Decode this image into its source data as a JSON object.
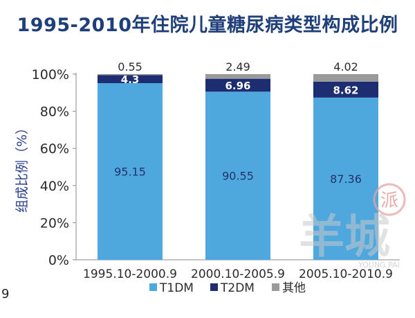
{
  "title": "1995-2010年住院儿童糖尿病类型构成比例",
  "page_number": "9",
  "watermark": {
    "seal_char": "派",
    "main_text": "羊城",
    "sub_text": "YOUNG PAI"
  },
  "colors": {
    "T1DM": "#4ea8de",
    "T2DM": "#1c2d72",
    "other": "#9a9a9a",
    "axis_text": "#2b2b2b",
    "ylabel": "#2a3f8f",
    "gridline": "#c8c8c8"
  },
  "chart_data": {
    "type": "bar",
    "stacked": true,
    "title": "1995-2010年住院儿童糖尿病类型构成比例",
    "xlabel": "",
    "ylabel": "组成比例（%）",
    "ylim": [
      0,
      100
    ],
    "yticks": [
      "0%",
      "20%",
      "40%",
      "60%",
      "80%",
      "100%"
    ],
    "categories": [
      "1995.10-2000.9",
      "2000.10-2005.9",
      "2005.10-2010.9"
    ],
    "series": [
      {
        "name": "T1DM",
        "values": [
          95.15,
          90.55,
          87.36
        ],
        "labels": [
          "95.15",
          "90.55",
          "87.36"
        ]
      },
      {
        "name": "T2DM",
        "values": [
          4.3,
          6.96,
          8.62
        ],
        "labels": [
          "4.3",
          "6.96",
          "8.62"
        ]
      },
      {
        "name": "其他",
        "values": [
          0.55,
          2.49,
          4.02
        ],
        "labels": [
          "0.55",
          "2.49",
          "4.02"
        ]
      }
    ],
    "legend": "bottom",
    "grid": false
  }
}
